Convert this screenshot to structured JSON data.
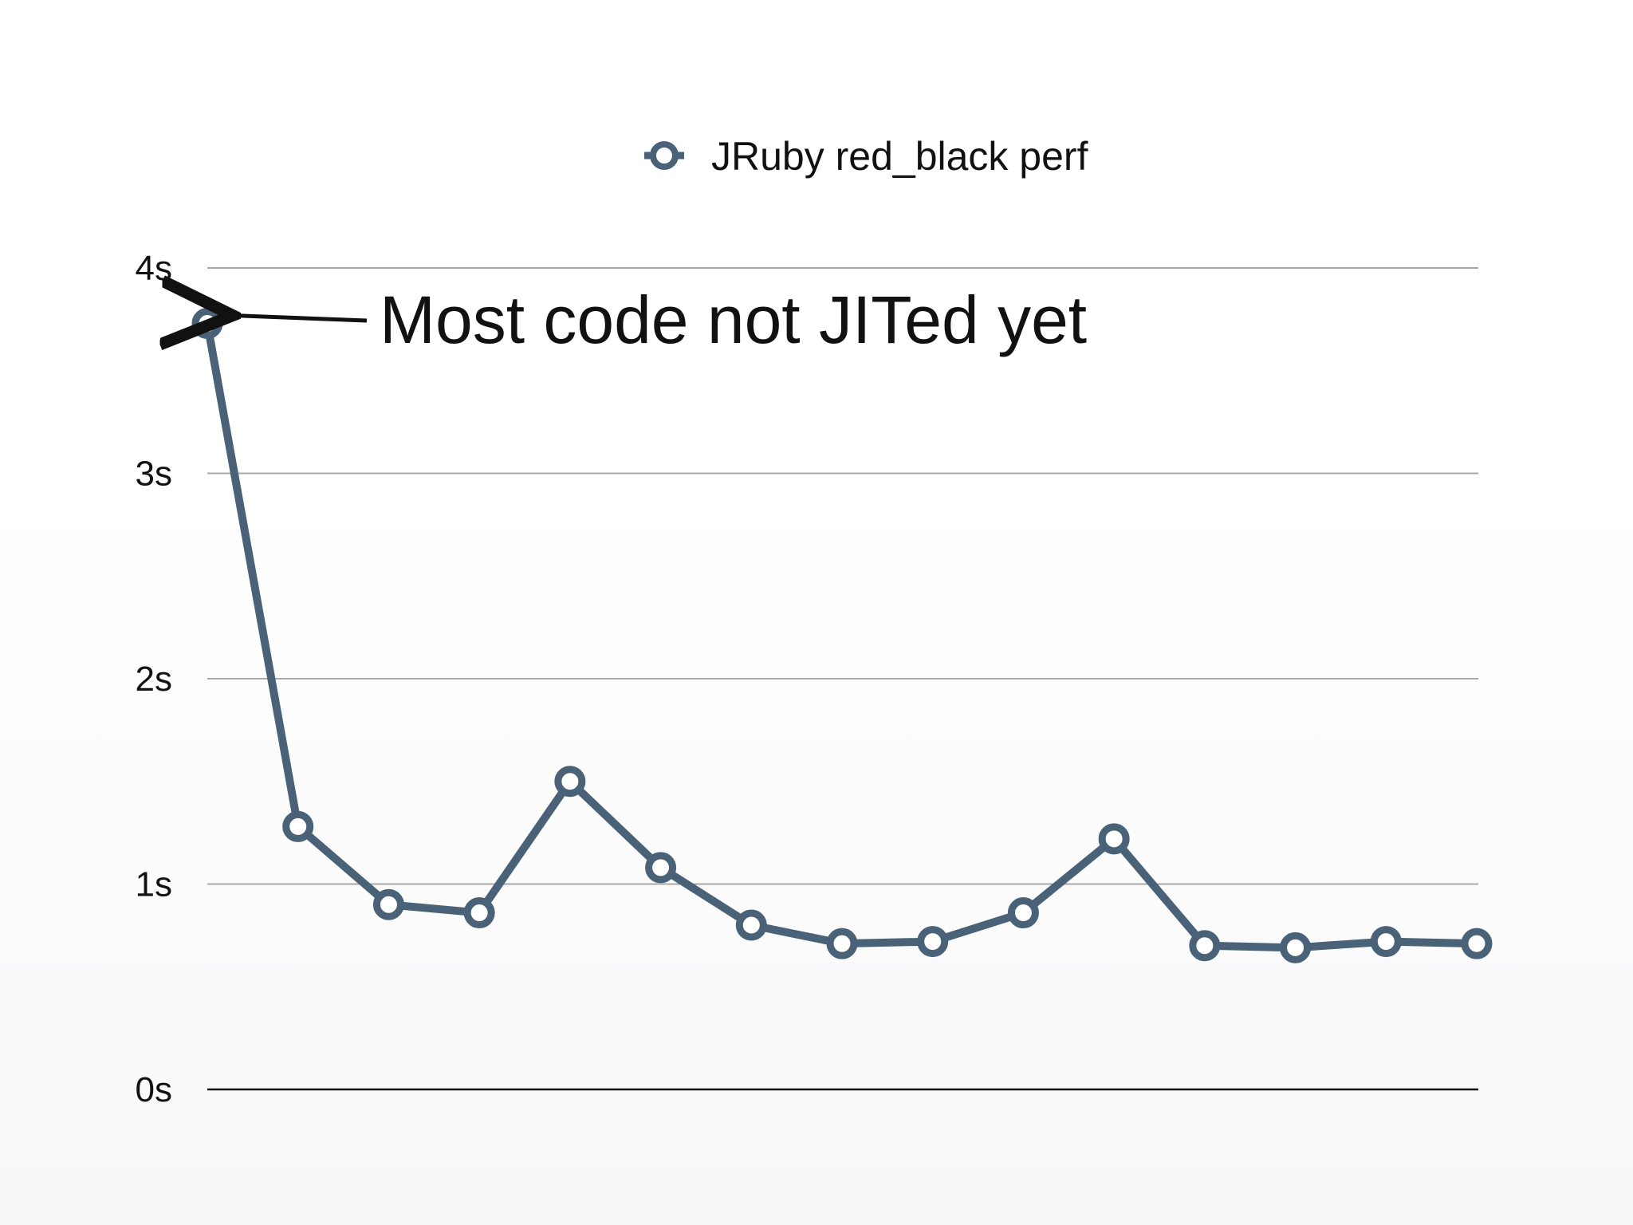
{
  "chart_data": {
    "type": "line",
    "title": "",
    "xlabel": "",
    "ylabel": "",
    "ylim": [
      0,
      4
    ],
    "y_ticks": [
      {
        "value": 0,
        "label": "0s"
      },
      {
        "value": 1,
        "label": "1s"
      },
      {
        "value": 2,
        "label": "2s"
      },
      {
        "value": 3,
        "label": "3s"
      },
      {
        "value": 4,
        "label": "4s"
      }
    ],
    "grid": true,
    "legend_position": "top-center",
    "x": [
      1,
      2,
      3,
      4,
      5,
      6,
      7,
      8,
      9,
      10,
      11,
      12,
      13,
      14,
      15
    ],
    "series": [
      {
        "name": "JRuby red_black perf",
        "color": "#4a6277",
        "values": [
          3.73,
          1.28,
          0.9,
          0.86,
          1.5,
          1.08,
          0.8,
          0.71,
          0.72,
          0.86,
          1.22,
          0.7,
          0.69,
          0.72,
          0.71
        ]
      }
    ],
    "annotations": [
      {
        "text": "Most code not JITed yet",
        "point_index": 0,
        "arrow": true
      }
    ]
  }
}
